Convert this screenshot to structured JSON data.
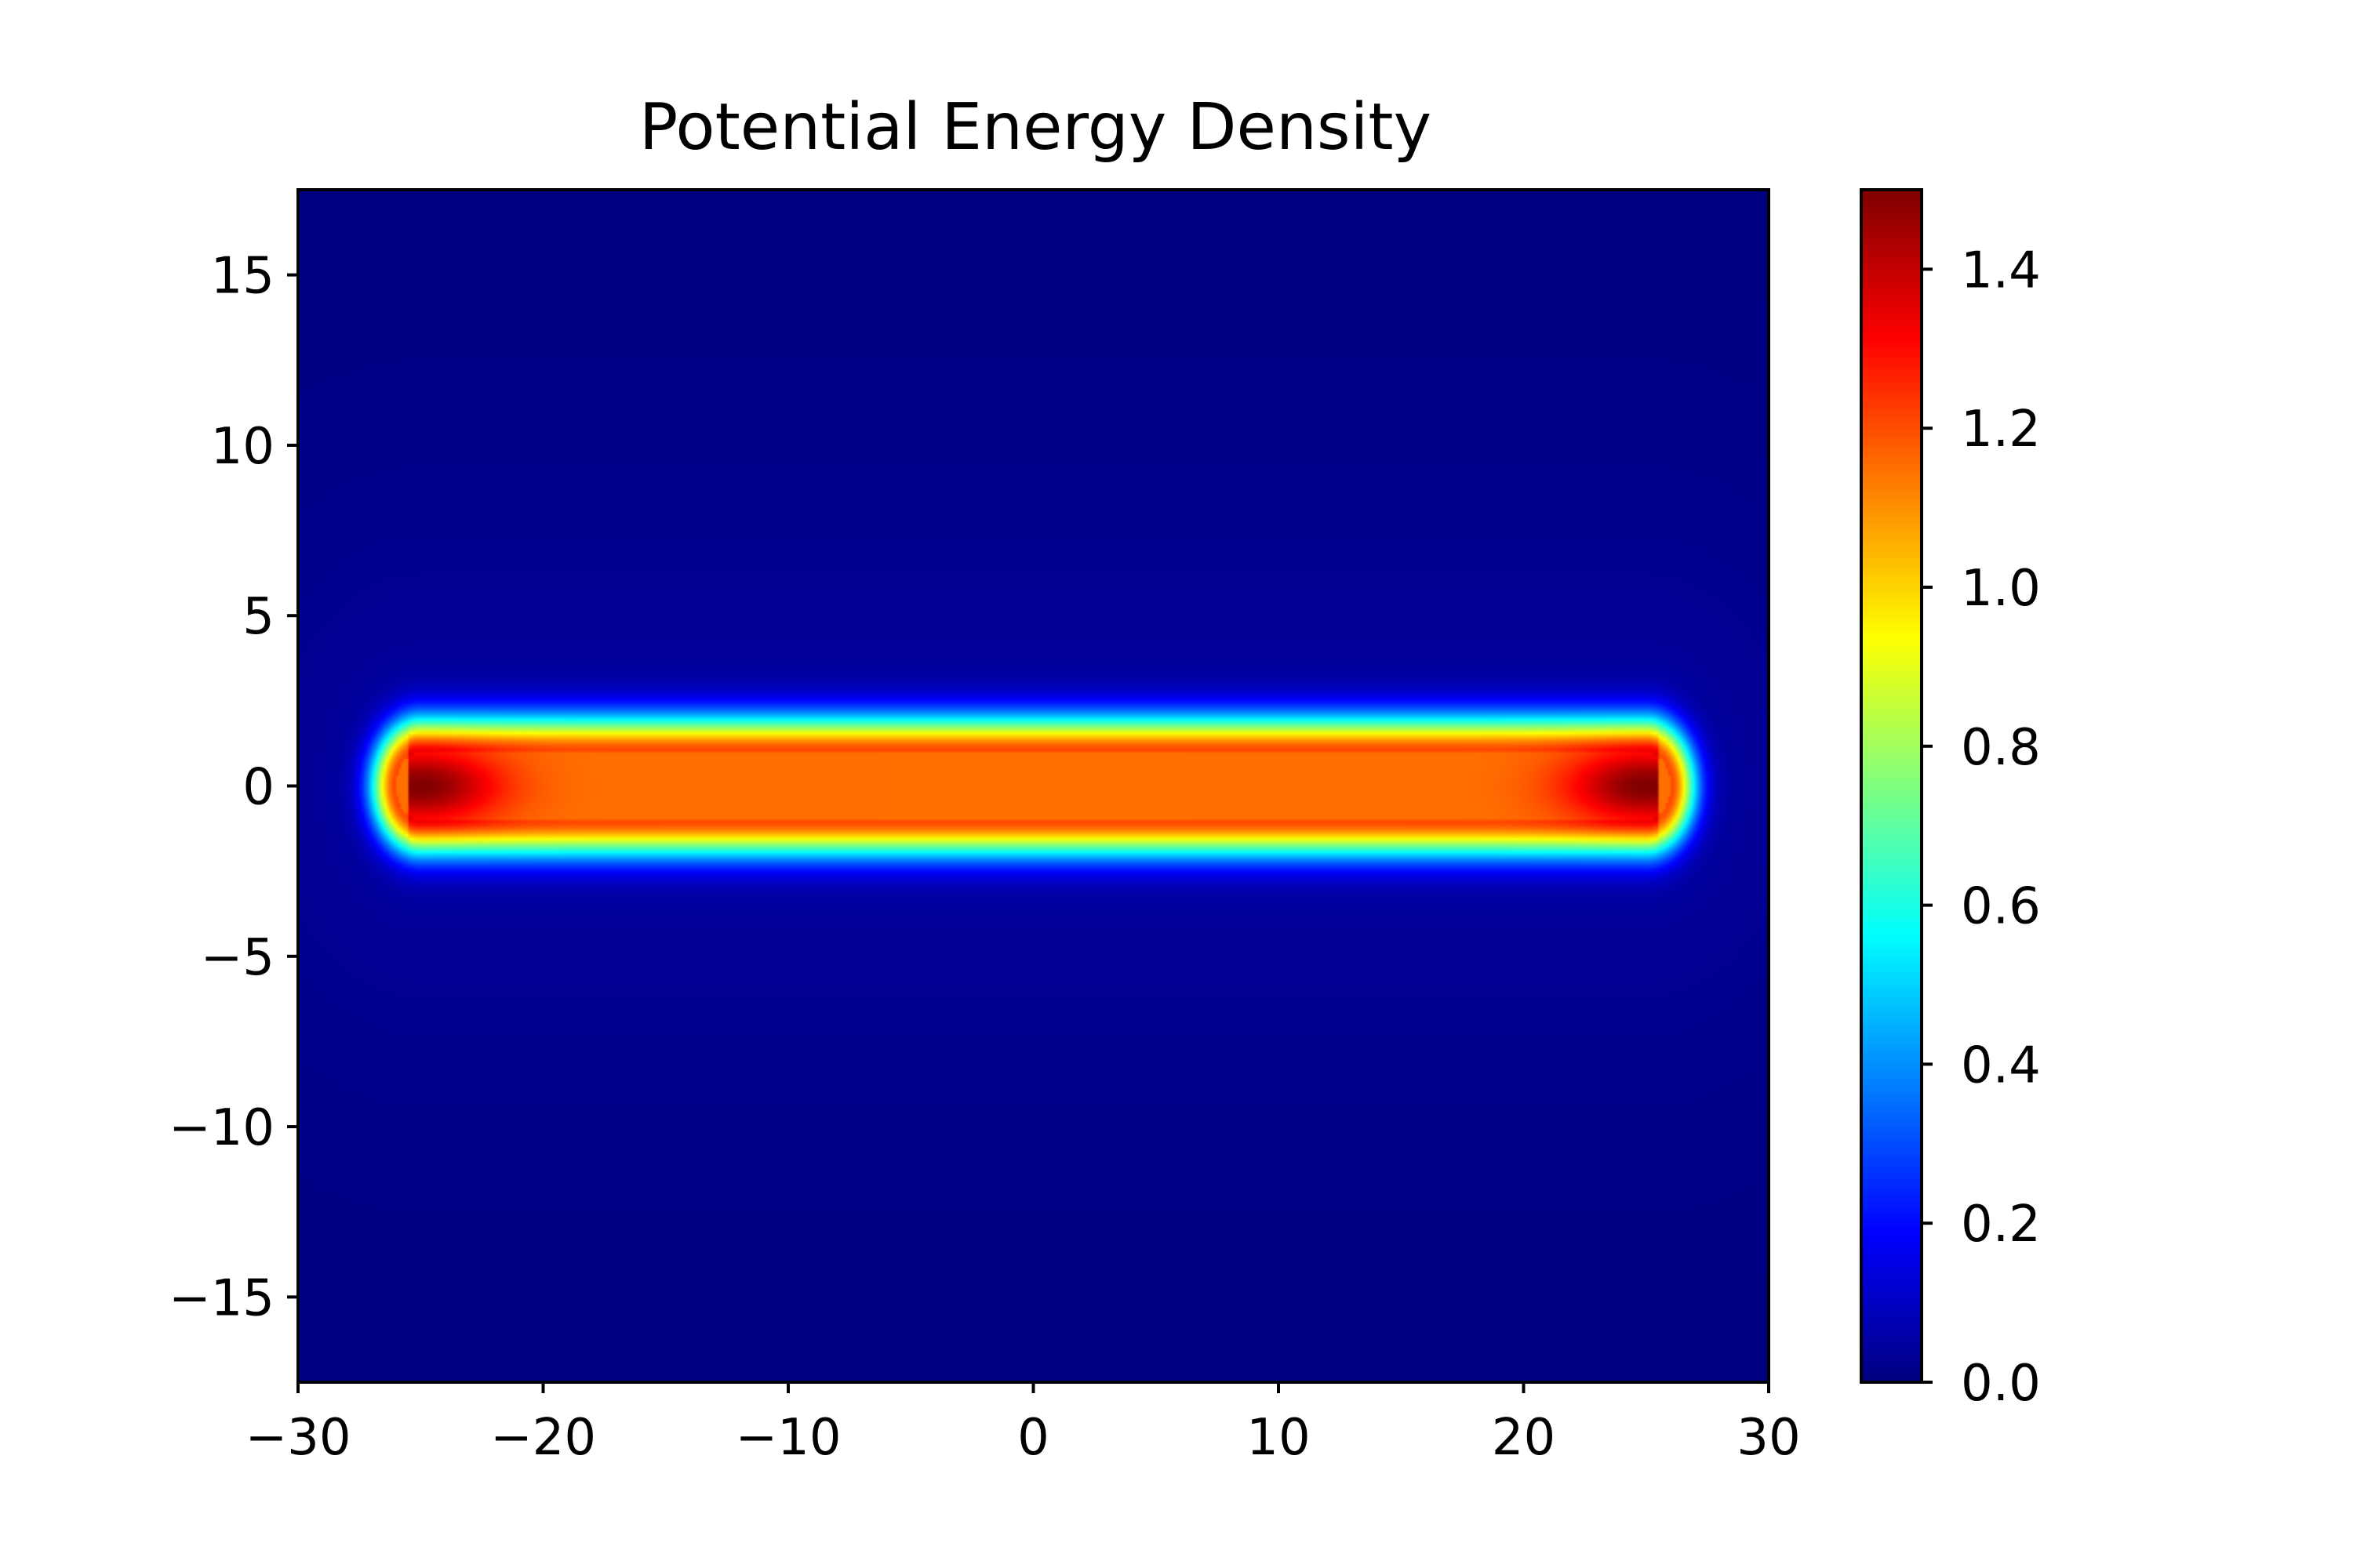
{
  "chart_data": {
    "type": "heatmap",
    "title": "Potential Energy Density",
    "xlabel": "",
    "ylabel": "",
    "xlim": [
      -30,
      30
    ],
    "ylim": [
      -17.5,
      17.5
    ],
    "x_ticks": [
      -30,
      -20,
      -10,
      0,
      10,
      20,
      30
    ],
    "x_tick_labels": [
      "−30",
      "−20",
      "−10",
      "0",
      "10",
      "20",
      "30"
    ],
    "y_ticks": [
      15,
      10,
      5,
      0,
      -5,
      -10,
      -15
    ],
    "y_tick_labels": [
      "15",
      "10",
      "5",
      "0",
      "−5",
      "−10",
      "−15"
    ],
    "colormap": "jet",
    "colorbar": {
      "range": [
        0.0,
        1.5
      ],
      "ticks": [
        0.0,
        0.2,
        0.4,
        0.6,
        0.8,
        1.0,
        1.2,
        1.4
      ],
      "tick_labels": [
        "0.0",
        "0.2",
        "0.4",
        "0.6",
        "0.8",
        "1.0",
        "1.2",
        "1.4"
      ]
    },
    "field": {
      "shape": "horizontal band along y = 0 with rounded ends",
      "x_extent": [
        -25,
        25
      ],
      "core_half_width": 1.0,
      "core_value": 1.15,
      "end_peak_value": 1.5,
      "end_positions": [
        -25,
        25
      ],
      "background_value": 0.0
    },
    "grid": false,
    "legend": "none"
  }
}
